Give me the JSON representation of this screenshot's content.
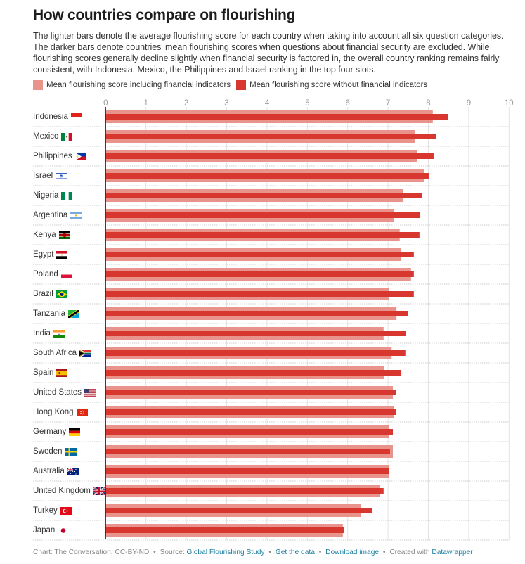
{
  "header": {
    "title": "How countries compare on flourishing",
    "description": "The lighter bars denote the average flourishing score for each country when taking into account all six question categories. The darker bars denote countries' mean flourishing scores when questions about financial security are excluded. While flourishing scores generally decline slightly when financial security is factored in, the overall country ranking remains fairly consistent, with Indonesia, Mexico, the Philippines and Israel ranking in the top four slots."
  },
  "colors": {
    "light_bar": "#e8948c",
    "dark_bar": "#d7372e",
    "link": "#1d81a2"
  },
  "chart_data": {
    "type": "bar",
    "orientation": "horizontal",
    "title": "How countries compare on flourishing",
    "xlabel": "",
    "ylabel": "",
    "xlim": [
      0,
      10
    ],
    "ticks": [
      "0",
      "1",
      "2",
      "3",
      "4",
      "5",
      "6",
      "7",
      "8",
      "9",
      "10"
    ],
    "grid": true,
    "legend_position": "top-left",
    "categories": [
      "Indonesia",
      "Mexico",
      "Philippines",
      "Israel",
      "Nigeria",
      "Argentina",
      "Kenya",
      "Egypt",
      "Poland",
      "Brazil",
      "Tanzania",
      "India",
      "South Africa",
      "Spain",
      "United States",
      "Hong Kong",
      "Germany",
      "Sweden",
      "Australia",
      "United Kingdom",
      "Turkey",
      "Japan"
    ],
    "flags": [
      "indonesia-flag",
      "mexico-flag",
      "philippines-flag",
      "israel-flag",
      "nigeria-flag",
      "argentina-flag",
      "kenya-flag",
      "egypt-flag",
      "poland-flag",
      "brazil-flag",
      "tanzania-flag",
      "india-flag",
      "south-africa-flag",
      "spain-flag",
      "united-states-flag",
      "hong-kong-flag",
      "germany-flag",
      "sweden-flag",
      "australia-flag",
      "united-kingdom-flag",
      "turkey-flag",
      "japan-flag"
    ],
    "series": [
      {
        "name": "Mean flourishing score including financial indicators",
        "color": "#e8948c",
        "values": [
          8.11,
          7.66,
          7.73,
          7.89,
          7.38,
          7.15,
          7.29,
          7.33,
          7.57,
          7.03,
          7.21,
          6.89,
          7.09,
          6.91,
          7.12,
          7.14,
          7.03,
          7.12,
          7.03,
          6.8,
          6.33,
          5.88
        ]
      },
      {
        "name": "Mean flourishing score without financial indicators",
        "color": "#d7372e",
        "values": [
          8.48,
          8.2,
          8.13,
          8.01,
          7.85,
          7.8,
          7.78,
          7.64,
          7.64,
          7.64,
          7.5,
          7.45,
          7.43,
          7.33,
          7.19,
          7.19,
          7.12,
          7.05,
          7.03,
          6.89,
          6.6,
          5.91
        ]
      }
    ]
  },
  "footer": {
    "credit": "Chart: The Conversation, CC-BY-ND",
    "source_label": "Source:",
    "source_link": "Global Flourishing Study",
    "get_data": "Get the data",
    "download": "Download image",
    "created_with": "Created with",
    "datawrapper": "Datawrapper",
    "separator": "•"
  }
}
